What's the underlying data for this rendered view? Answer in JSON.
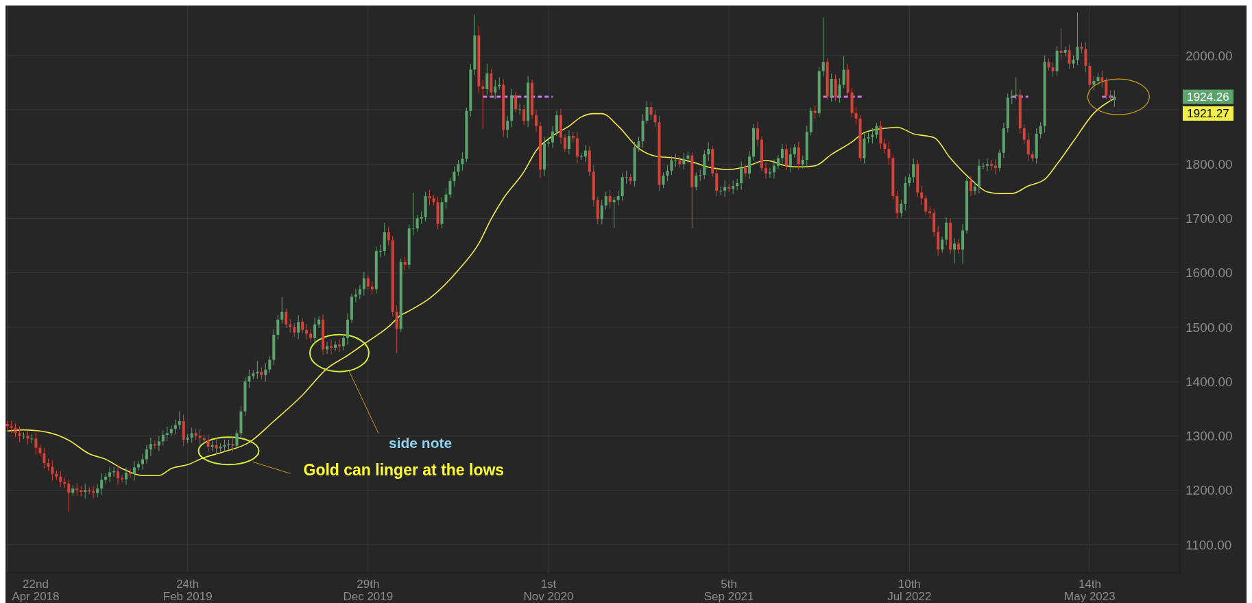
{
  "chart_data": {
    "type": "candlestick",
    "x": [
      "2018-04-22",
      "2018-04-29",
      "2018-05-06",
      "2018-05-13",
      "2018-05-20",
      "2018-05-27",
      "2018-06-03",
      "2018-06-10",
      "2018-06-17",
      "2018-06-24",
      "2018-07-01",
      "2018-07-08",
      "2018-07-15",
      "2018-07-22",
      "2018-07-29",
      "2018-08-05",
      "2018-08-12",
      "2018-08-19",
      "2018-08-26",
      "2018-09-02",
      "2018-09-09",
      "2018-09-16",
      "2018-09-23",
      "2018-09-30",
      "2018-10-07",
      "2018-10-14",
      "2018-10-21",
      "2018-10-28",
      "2018-11-04",
      "2018-11-11",
      "2018-11-18",
      "2018-11-25",
      "2018-12-02",
      "2018-12-09",
      "2018-12-16",
      "2018-12-23",
      "2018-12-30",
      "2019-01-06",
      "2019-01-13",
      "2019-01-20",
      "2019-01-27",
      "2019-02-03",
      "2019-02-10",
      "2019-02-17",
      "2019-02-24",
      "2019-03-03",
      "2019-03-10",
      "2019-03-17",
      "2019-03-24",
      "2019-03-31",
      "2019-04-07",
      "2019-04-14",
      "2019-04-21",
      "2019-04-28",
      "2019-05-05",
      "2019-05-12",
      "2019-05-19",
      "2019-05-26",
      "2019-06-02",
      "2019-06-09",
      "2019-06-16",
      "2019-06-23",
      "2019-06-30",
      "2019-07-07",
      "2019-07-14",
      "2019-07-21",
      "2019-07-28",
      "2019-08-04",
      "2019-08-11",
      "2019-08-18",
      "2019-08-25",
      "2019-09-01",
      "2019-09-08",
      "2019-09-15",
      "2019-09-22",
      "2019-09-29",
      "2019-10-06",
      "2019-10-13",
      "2019-10-20",
      "2019-10-27",
      "2019-11-03",
      "2019-11-10",
      "2019-11-17",
      "2019-11-24",
      "2019-12-01",
      "2019-12-08",
      "2019-12-15",
      "2019-12-22",
      "2019-12-29",
      "2020-01-05",
      "2020-01-12",
      "2020-01-19",
      "2020-01-26",
      "2020-02-02",
      "2020-02-09",
      "2020-02-16",
      "2020-02-23",
      "2020-03-01",
      "2020-03-08",
      "2020-03-15",
      "2020-03-22",
      "2020-03-29",
      "2020-04-05",
      "2020-04-12",
      "2020-04-19",
      "2020-04-26",
      "2020-05-03",
      "2020-05-10",
      "2020-05-17",
      "2020-05-24",
      "2020-05-31",
      "2020-06-07",
      "2020-06-14",
      "2020-06-21",
      "2020-06-28",
      "2020-07-05",
      "2020-07-12",
      "2020-07-19",
      "2020-07-26",
      "2020-08-02",
      "2020-08-09",
      "2020-08-16",
      "2020-08-23",
      "2020-08-30",
      "2020-09-06",
      "2020-09-13",
      "2020-09-20",
      "2020-09-27",
      "2020-10-04",
      "2020-10-11",
      "2020-10-18",
      "2020-10-25",
      "2020-11-01",
      "2020-11-08",
      "2020-11-15",
      "2020-11-22",
      "2020-11-29",
      "2020-12-06",
      "2020-12-13",
      "2020-12-20",
      "2020-12-27",
      "2021-01-03",
      "2021-01-10",
      "2021-01-17",
      "2021-01-24",
      "2021-01-31",
      "2021-02-07",
      "2021-02-14",
      "2021-02-21",
      "2021-02-28",
      "2021-03-07",
      "2021-03-14",
      "2021-03-21",
      "2021-03-28",
      "2021-04-04",
      "2021-04-11",
      "2021-04-18",
      "2021-04-25",
      "2021-05-02",
      "2021-05-09",
      "2021-05-16",
      "2021-05-23",
      "2021-05-30",
      "2021-06-06",
      "2021-06-13",
      "2021-06-20",
      "2021-06-27",
      "2021-07-04",
      "2021-07-11",
      "2021-07-18",
      "2021-07-25",
      "2021-08-01",
      "2021-08-08",
      "2021-08-15",
      "2021-08-22",
      "2021-08-29",
      "2021-09-05",
      "2021-09-12",
      "2021-09-19",
      "2021-09-26",
      "2021-10-03",
      "2021-10-10",
      "2021-10-17",
      "2021-10-24",
      "2021-10-31",
      "2021-11-07",
      "2021-11-14",
      "2021-11-21",
      "2021-11-28",
      "2021-12-05",
      "2021-12-12",
      "2021-12-19",
      "2021-12-26",
      "2022-01-02",
      "2022-01-09",
      "2022-01-16",
      "2022-01-23",
      "2022-01-30",
      "2022-02-06",
      "2022-02-13",
      "2022-02-20",
      "2022-02-27",
      "2022-03-06",
      "2022-03-13",
      "2022-03-20",
      "2022-03-27",
      "2022-04-03",
      "2022-04-10",
      "2022-04-17",
      "2022-04-24",
      "2022-05-01",
      "2022-05-08",
      "2022-05-15",
      "2022-05-22",
      "2022-05-29",
      "2022-06-05",
      "2022-06-12",
      "2022-06-19",
      "2022-06-26",
      "2022-07-03",
      "2022-07-10",
      "2022-07-17",
      "2022-07-24",
      "2022-07-31",
      "2022-08-07",
      "2022-08-14",
      "2022-08-21",
      "2022-08-28",
      "2022-09-04",
      "2022-09-11",
      "2022-09-18",
      "2022-09-25",
      "2022-10-02",
      "2022-10-09",
      "2022-10-16",
      "2022-10-23",
      "2022-10-30",
      "2022-11-06",
      "2022-11-13",
      "2022-11-20",
      "2022-11-27",
      "2022-12-04",
      "2022-12-11",
      "2022-12-18",
      "2022-12-25",
      "2023-01-01",
      "2023-01-08",
      "2023-01-15",
      "2023-01-22",
      "2023-01-29",
      "2023-02-05",
      "2023-02-12",
      "2023-02-19",
      "2023-02-26",
      "2023-03-05",
      "2023-03-12",
      "2023-03-19",
      "2023-03-26",
      "2023-04-02",
      "2023-04-09",
      "2023-04-16",
      "2023-04-23",
      "2023-04-30",
      "2023-05-07",
      "2023-05-14",
      "2023-05-21",
      "2023-05-28",
      "2023-06-04",
      "2023-06-11",
      "2023-06-18",
      "2023-06-25"
    ],
    "ohlc": [
      [
        1322,
        1328,
        1312,
        1318
      ],
      [
        1318,
        1328,
        1305,
        1315
      ],
      [
        1315,
        1323,
        1297,
        1305
      ],
      [
        1305,
        1317,
        1288,
        1300
      ],
      [
        1300,
        1306,
        1294,
        1300
      ],
      [
        1300,
        1310,
        1285,
        1295
      ],
      [
        1295,
        1303,
        1287,
        1295
      ],
      [
        1295,
        1307,
        1266,
        1278
      ],
      [
        1278,
        1284,
        1262,
        1268
      ],
      [
        1268,
        1278,
        1240,
        1250
      ],
      [
        1250,
        1258,
        1235,
        1243
      ],
      [
        1243,
        1255,
        1218,
        1230
      ],
      [
        1230,
        1236,
        1219,
        1225
      ],
      [
        1225,
        1235,
        1205,
        1215
      ],
      [
        1215,
        1223,
        1204,
        1212
      ],
      [
        1212,
        1220,
        1160,
        1195
      ],
      [
        1195,
        1209,
        1189,
        1203
      ],
      [
        1203,
        1213,
        1190,
        1200
      ],
      [
        1200,
        1208,
        1189,
        1197
      ],
      [
        1197,
        1212,
        1185,
        1200
      ],
      [
        1200,
        1206,
        1192,
        1198
      ],
      [
        1198,
        1208,
        1185,
        1195
      ],
      [
        1195,
        1211,
        1187,
        1203
      ],
      [
        1203,
        1231,
        1191,
        1219
      ],
      [
        1219,
        1231,
        1213,
        1225
      ],
      [
        1225,
        1243,
        1215,
        1233
      ],
      [
        1233,
        1243,
        1225,
        1235
      ],
      [
        1235,
        1247,
        1210,
        1222
      ],
      [
        1222,
        1228,
        1214,
        1220
      ],
      [
        1220,
        1242,
        1210,
        1232
      ],
      [
        1232,
        1240,
        1222,
        1230
      ],
      [
        1230,
        1254,
        1218,
        1242
      ],
      [
        1242,
        1254,
        1236,
        1248
      ],
      [
        1248,
        1267,
        1238,
        1257
      ],
      [
        1257,
        1283,
        1249,
        1275
      ],
      [
        1275,
        1297,
        1263,
        1285
      ],
      [
        1285,
        1291,
        1276,
        1282
      ],
      [
        1282,
        1300,
        1272,
        1290
      ],
      [
        1290,
        1310,
        1282,
        1302
      ],
      [
        1302,
        1317,
        1290,
        1305
      ],
      [
        1305,
        1319,
        1299,
        1313
      ],
      [
        1313,
        1330,
        1303,
        1320
      ],
      [
        1320,
        1345,
        1312,
        1327
      ],
      [
        1327,
        1339,
        1281,
        1293
      ],
      [
        1293,
        1303,
        1287,
        1297
      ],
      [
        1297,
        1315,
        1287,
        1305
      ],
      [
        1305,
        1313,
        1292,
        1300
      ],
      [
        1300,
        1312,
        1284,
        1296
      ],
      [
        1296,
        1302,
        1286,
        1292
      ],
      [
        1292,
        1302,
        1270,
        1280
      ],
      [
        1280,
        1291,
        1272,
        1283
      ],
      [
        1283,
        1295,
        1265,
        1277
      ],
      [
        1277,
        1286,
        1271,
        1280
      ],
      [
        1280,
        1293,
        1270,
        1283
      ],
      [
        1283,
        1293,
        1275,
        1285
      ],
      [
        1285,
        1297,
        1270,
        1282
      ],
      [
        1282,
        1311,
        1276,
        1305
      ],
      [
        1305,
        1355,
        1295,
        1345
      ],
      [
        1345,
        1408,
        1337,
        1400
      ],
      [
        1400,
        1422,
        1388,
        1410
      ],
      [
        1410,
        1421,
        1404,
        1415
      ],
      [
        1415,
        1438,
        1405,
        1418
      ],
      [
        1418,
        1426,
        1404,
        1412
      ],
      [
        1412,
        1434,
        1400,
        1422
      ],
      [
        1422,
        1446,
        1416,
        1440
      ],
      [
        1440,
        1496,
        1430,
        1486
      ],
      [
        1486,
        1522,
        1478,
        1514
      ],
      [
        1514,
        1556,
        1506,
        1528
      ],
      [
        1528,
        1534,
        1499,
        1505
      ],
      [
        1505,
        1515,
        1490,
        1500
      ],
      [
        1500,
        1508,
        1482,
        1490
      ],
      [
        1490,
        1522,
        1478,
        1510
      ],
      [
        1510,
        1516,
        1489,
        1495
      ],
      [
        1495,
        1505,
        1478,
        1488
      ],
      [
        1488,
        1496,
        1472,
        1480
      ],
      [
        1480,
        1517,
        1468,
        1505
      ],
      [
        1505,
        1520,
        1499,
        1514
      ],
      [
        1514,
        1524,
        1449,
        1459
      ],
      [
        1459,
        1473,
        1451,
        1465
      ],
      [
        1465,
        1477,
        1450,
        1462
      ],
      [
        1462,
        1474,
        1456,
        1468
      ],
      [
        1468,
        1478,
        1455,
        1465
      ],
      [
        1465,
        1488,
        1457,
        1480
      ],
      [
        1480,
        1526,
        1468,
        1514
      ],
      [
        1514,
        1562,
        1508,
        1556
      ],
      [
        1556,
        1570,
        1546,
        1560
      ],
      [
        1560,
        1578,
        1552,
        1570
      ],
      [
        1570,
        1602,
        1558,
        1590
      ],
      [
        1590,
        1596,
        1569,
        1575
      ],
      [
        1575,
        1585,
        1560,
        1570
      ],
      [
        1570,
        1648,
        1562,
        1640
      ],
      [
        1640,
        1652,
        1628,
        1640
      ],
      [
        1640,
        1692,
        1632,
        1675
      ],
      [
        1675,
        1685,
        1650,
        1660
      ],
      [
        1660,
        1668,
        1520,
        1528
      ],
      [
        1528,
        1540,
        1452,
        1497
      ],
      [
        1497,
        1626,
        1491,
        1620
      ],
      [
        1620,
        1630,
        1605,
        1615
      ],
      [
        1615,
        1690,
        1607,
        1682
      ],
      [
        1682,
        1748,
        1670,
        1682
      ],
      [
        1682,
        1706,
        1676,
        1700
      ],
      [
        1700,
        1713,
        1690,
        1703
      ],
      [
        1703,
        1749,
        1695,
        1741
      ],
      [
        1741,
        1753,
        1725,
        1737
      ],
      [
        1737,
        1743,
        1724,
        1730
      ],
      [
        1730,
        1740,
        1680,
        1690
      ],
      [
        1690,
        1738,
        1682,
        1730
      ],
      [
        1730,
        1756,
        1718,
        1744
      ],
      [
        1744,
        1775,
        1738,
        1769
      ],
      [
        1769,
        1796,
        1759,
        1786
      ],
      [
        1786,
        1808,
        1778,
        1800
      ],
      [
        1800,
        1822,
        1788,
        1810
      ],
      [
        1810,
        1904,
        1804,
        1898
      ],
      [
        1898,
        1984,
        1888,
        1974
      ],
      [
        1974,
        2075,
        1964,
        2037
      ],
      [
        2037,
        2055,
        1930,
        1943
      ],
      [
        1943,
        1955,
        1865,
        1938
      ],
      [
        1938,
        1985,
        1928,
        1967
      ],
      [
        1967,
        1975,
        1924,
        1932
      ],
      [
        1932,
        1955,
        1920,
        1943
      ],
      [
        1943,
        1960,
        1937,
        1946
      ],
      [
        1946,
        1956,
        1850,
        1863
      ],
      [
        1863,
        1888,
        1848,
        1880
      ],
      [
        1880,
        1939,
        1868,
        1927
      ],
      [
        1927,
        1933,
        1895,
        1901
      ],
      [
        1901,
        1911,
        1891,
        1901
      ],
      [
        1901,
        1909,
        1872,
        1880
      ],
      [
        1880,
        1962,
        1868,
        1950
      ],
      [
        1950,
        1956,
        1884,
        1890
      ],
      [
        1890,
        1900,
        1860,
        1870
      ],
      [
        1870,
        1878,
        1775,
        1790
      ],
      [
        1790,
        1850,
        1778,
        1838
      ],
      [
        1838,
        1846,
        1832,
        1840
      ],
      [
        1840,
        1870,
        1830,
        1860
      ],
      [
        1860,
        1898,
        1852,
        1890
      ],
      [
        1890,
        1902,
        1837,
        1849
      ],
      [
        1849,
        1855,
        1822,
        1828
      ],
      [
        1828,
        1862,
        1818,
        1852
      ],
      [
        1852,
        1860,
        1840,
        1848
      ],
      [
        1848,
        1860,
        1802,
        1814
      ],
      [
        1814,
        1820,
        1808,
        1814
      ],
      [
        1814,
        1835,
        1804,
        1825
      ],
      [
        1825,
        1833,
        1778,
        1786
      ],
      [
        1786,
        1798,
        1722,
        1734
      ],
      [
        1734,
        1740,
        1689,
        1699
      ],
      [
        1699,
        1734,
        1689,
        1724
      ],
      [
        1724,
        1749,
        1716,
        1741
      ],
      [
        1741,
        1753,
        1718,
        1730
      ],
      [
        1730,
        1740,
        1682,
        1734
      ],
      [
        1734,
        1751,
        1724,
        1741
      ],
      [
        1741,
        1784,
        1733,
        1776
      ],
      [
        1776,
        1788,
        1764,
        1776
      ],
      [
        1776,
        1782,
        1763,
        1769
      ],
      [
        1769,
        1841,
        1759,
        1831
      ],
      [
        1831,
        1850,
        1823,
        1842
      ],
      [
        1842,
        1892,
        1830,
        1880
      ],
      [
        1880,
        1916,
        1874,
        1905
      ],
      [
        1905,
        1915,
        1881,
        1891
      ],
      [
        1891,
        1899,
        1869,
        1877
      ],
      [
        1877,
        1889,
        1750,
        1762
      ],
      [
        1762,
        1785,
        1756,
        1779
      ],
      [
        1779,
        1798,
        1769,
        1788
      ],
      [
        1788,
        1815,
        1780,
        1807
      ],
      [
        1807,
        1819,
        1795,
        1807
      ],
      [
        1807,
        1813,
        1794,
        1800
      ],
      [
        1800,
        1820,
        1790,
        1810
      ],
      [
        1810,
        1824,
        1802,
        1816
      ],
      [
        1816,
        1822,
        1682,
        1758
      ],
      [
        1758,
        1785,
        1752,
        1779
      ],
      [
        1779,
        1790,
        1769,
        1780
      ],
      [
        1780,
        1826,
        1772,
        1818
      ],
      [
        1818,
        1840,
        1806,
        1828
      ],
      [
        1828,
        1834,
        1777,
        1783
      ],
      [
        1783,
        1793,
        1741,
        1751
      ],
      [
        1751,
        1759,
        1743,
        1751
      ],
      [
        1751,
        1770,
        1739,
        1758
      ],
      [
        1758,
        1764,
        1749,
        1755
      ],
      [
        1755,
        1770,
        1745,
        1760
      ],
      [
        1760,
        1773,
        1752,
        1765
      ],
      [
        1765,
        1805,
        1753,
        1793
      ],
      [
        1793,
        1799,
        1777,
        1783
      ],
      [
        1783,
        1824,
        1773,
        1814
      ],
      [
        1814,
        1874,
        1806,
        1866
      ],
      [
        1866,
        1878,
        1833,
        1845
      ],
      [
        1845,
        1851,
        1787,
        1793
      ],
      [
        1793,
        1803,
        1773,
        1783
      ],
      [
        1783,
        1793,
        1775,
        1785
      ],
      [
        1785,
        1809,
        1773,
        1797
      ],
      [
        1797,
        1817,
        1791,
        1811
      ],
      [
        1811,
        1838,
        1801,
        1828
      ],
      [
        1828,
        1836,
        1789,
        1797
      ],
      [
        1797,
        1830,
        1785,
        1818
      ],
      [
        1818,
        1837,
        1812,
        1831
      ],
      [
        1831,
        1841,
        1790,
        1800
      ],
      [
        1800,
        1816,
        1792,
        1808
      ],
      [
        1808,
        1871,
        1796,
        1859
      ],
      [
        1859,
        1904,
        1853,
        1898
      ],
      [
        1898,
        1908,
        1884,
        1894
      ],
      [
        1894,
        1979,
        1886,
        1971
      ],
      [
        1971,
        2070,
        1961,
        1988
      ],
      [
        1988,
        1994,
        1919,
        1925
      ],
      [
        1925,
        1967,
        1915,
        1957
      ],
      [
        1957,
        1965,
        1917,
        1925
      ],
      [
        1925,
        1958,
        1913,
        1946
      ],
      [
        1946,
        1999,
        1940,
        1974
      ],
      [
        1974,
        1984,
        1922,
        1932
      ],
      [
        1932,
        1940,
        1886,
        1894
      ],
      [
        1894,
        1906,
        1872,
        1884
      ],
      [
        1884,
        1890,
        1805,
        1811
      ],
      [
        1811,
        1857,
        1801,
        1847
      ],
      [
        1847,
        1858,
        1839,
        1850
      ],
      [
        1850,
        1866,
        1838,
        1854
      ],
      [
        1854,
        1876,
        1848,
        1870
      ],
      [
        1870,
        1880,
        1828,
        1838
      ],
      [
        1838,
        1846,
        1820,
        1828
      ],
      [
        1828,
        1840,
        1799,
        1811
      ],
      [
        1811,
        1817,
        1735,
        1741
      ],
      [
        1741,
        1751,
        1700,
        1710
      ],
      [
        1710,
        1735,
        1702,
        1727
      ],
      [
        1727,
        1777,
        1715,
        1765
      ],
      [
        1765,
        1782,
        1759,
        1776
      ],
      [
        1776,
        1810,
        1766,
        1800
      ],
      [
        1800,
        1808,
        1740,
        1748
      ],
      [
        1748,
        1760,
        1725,
        1737
      ],
      [
        1737,
        1743,
        1707,
        1713
      ],
      [
        1713,
        1723,
        1700,
        1710
      ],
      [
        1710,
        1718,
        1667,
        1675
      ],
      [
        1675,
        1687,
        1631,
        1643
      ],
      [
        1643,
        1667,
        1637,
        1661
      ],
      [
        1661,
        1702,
        1651,
        1692
      ],
      [
        1692,
        1700,
        1635,
        1643
      ],
      [
        1643,
        1664,
        1617,
        1654
      ],
      [
        1654,
        1662,
        1635,
        1643
      ],
      [
        1643,
        1690,
        1617,
        1678
      ],
      [
        1678,
        1775,
        1672,
        1769
      ],
      [
        1769,
        1779,
        1741,
        1751
      ],
      [
        1751,
        1766,
        1743,
        1758
      ],
      [
        1758,
        1809,
        1746,
        1797
      ],
      [
        1797,
        1803,
        1791,
        1797
      ],
      [
        1797,
        1810,
        1787,
        1800
      ],
      [
        1800,
        1808,
        1789,
        1797
      ],
      [
        1797,
        1809,
        1781,
        1793
      ],
      [
        1793,
        1827,
        1787,
        1821
      ],
      [
        1821,
        1876,
        1811,
        1866
      ],
      [
        1866,
        1930,
        1858,
        1922
      ],
      [
        1922,
        1937,
        1910,
        1925
      ],
      [
        1925,
        1960,
        1919,
        1928
      ],
      [
        1928,
        1938,
        1856,
        1866
      ],
      [
        1866,
        1874,
        1837,
        1845
      ],
      [
        1845,
        1857,
        1806,
        1818
      ],
      [
        1818,
        1824,
        1805,
        1811
      ],
      [
        1811,
        1866,
        1801,
        1856
      ],
      [
        1856,
        1878,
        1848,
        1870
      ],
      [
        1870,
        2000,
        1858,
        1988
      ],
      [
        1988,
        1994,
        1972,
        1978
      ],
      [
        1978,
        1988,
        1961,
        1971
      ],
      [
        1971,
        2017,
        1963,
        2009
      ],
      [
        2009,
        2051,
        1993,
        2005
      ],
      [
        2005,
        2016,
        1999,
        2010
      ],
      [
        2010,
        2020,
        1975,
        1985
      ],
      [
        1985,
        2000,
        1977,
        1992
      ],
      [
        1992,
        2079,
        1982,
        2016
      ],
      [
        2016,
        2024,
        2004,
        2012
      ],
      [
        2012,
        2024,
        1969,
        1981
      ],
      [
        1981,
        1987,
        1940,
        1946
      ],
      [
        1946,
        1963,
        1936,
        1953
      ],
      [
        1953,
        1968,
        1945,
        1960
      ],
      [
        1960,
        1972,
        1941,
        1953
      ],
      [
        1953,
        1959,
        1920,
        1926
      ],
      [
        1926,
        1936,
        1915,
        1925
      ],
      [
        1918,
        1936,
        1905,
        1924
      ]
    ],
    "series": [
      {
        "type": "line",
        "color": "#f2ee4a",
        "x": [
          "2018-04-22",
          "2018-05-20",
          "2018-06-17",
          "2018-07-15",
          "2018-08-05",
          "2018-09-09",
          "2018-10-07",
          "2018-11-04",
          "2018-12-09",
          "2019-01-06",
          "2019-01-27",
          "2019-02-24",
          "2019-03-24",
          "2019-04-28",
          "2019-06-09",
          "2019-07-21",
          "2019-09-08",
          "2019-10-20",
          "2019-11-24",
          "2019-12-22",
          "2020-02-02",
          "2020-02-23",
          "2020-03-08",
          "2020-04-12",
          "2020-05-31",
          "2020-07-05",
          "2020-07-26",
          "2020-08-16",
          "2020-09-20",
          "2020-10-11",
          "2020-11-08",
          "2020-12-06",
          "2020-12-27",
          "2021-01-17",
          "2021-01-31",
          "2021-02-28",
          "2021-04-04",
          "2021-05-02",
          "2021-06-06",
          "2021-07-04",
          "2021-08-08",
          "2021-09-05",
          "2021-10-03",
          "2021-11-07",
          "2021-12-12",
          "2022-01-02",
          "2022-01-30",
          "2022-02-27",
          "2022-04-03",
          "2022-04-24",
          "2022-05-29",
          "2022-06-19",
          "2022-07-17",
          "2022-08-21",
          "2022-09-18",
          "2022-10-23",
          "2022-11-20",
          "2022-12-11",
          "2023-01-01",
          "2023-01-29",
          "2023-02-26",
          "2023-03-19",
          "2023-04-16",
          "2023-05-21",
          "2023-06-25"
        ],
        "values": [
          1309,
          1311,
          1309,
          1302,
          1292,
          1267,
          1257,
          1240,
          1227,
          1227,
          1240,
          1247,
          1260,
          1271,
          1288,
          1327,
          1375,
          1424,
          1448,
          1469,
          1501,
          1522,
          1530,
          1553,
          1605,
          1654,
          1699,
          1737,
          1786,
          1825,
          1852,
          1870,
          1887,
          1893,
          1893,
          1870,
          1829,
          1815,
          1811,
          1804,
          1793,
          1790,
          1795,
          1807,
          1797,
          1795,
          1797,
          1818,
          1841,
          1858,
          1866,
          1868,
          1856,
          1849,
          1811,
          1772,
          1749,
          1746,
          1746,
          1760,
          1772,
          1800,
          1842,
          1894,
          1921
        ]
      },
      {
        "type": "line",
        "color": "#cc77ee",
        "line_style": "dashed",
        "x": [
          "2020-07-12",
          "2020-11-08",
          "2020-11-15",
          "2022-02-13",
          "2022-04-24",
          "2022-05-01",
          "2023-01-01",
          "2023-01-29",
          "2023-02-05",
          "2023-06-04",
          "2023-06-25"
        ],
        "values": [
          1924,
          1924,
          null,
          1924,
          1924,
          null,
          1924,
          1924,
          null,
          1924,
          1924
        ]
      }
    ],
    "xlim": [
      "2018-04-19",
      "2023-10-15"
    ],
    "xticks": [
      {
        "value": "2018-04-22",
        "label": "22nd Apr 2018"
      },
      {
        "value": "2019-02-24",
        "label": "24th Feb 2019"
      },
      {
        "value": "2019-12-29",
        "label": "29th Dec 2019"
      },
      {
        "value": "2020-11-01",
        "label": "1st Nov 2020"
      },
      {
        "value": "2021-09-05",
        "label": "5th Sep 2021"
      },
      {
        "value": "2022-07-10",
        "label": "10th Jul 2022"
      },
      {
        "value": "2023-05-14",
        "label": "14th May 2023"
      }
    ],
    "ylim": [
      1048,
      2092
    ],
    "yticks": [
      {
        "value": 1100,
        "label": "1100.00"
      },
      {
        "value": 1200,
        "label": "1200.00"
      },
      {
        "value": 1300,
        "label": "1300.00"
      },
      {
        "value": 1400,
        "label": "1400.00"
      },
      {
        "value": 1500,
        "label": "1500.00"
      },
      {
        "value": 1600,
        "label": "1600.00"
      },
      {
        "value": 1700,
        "label": "1700.00"
      },
      {
        "value": 1800,
        "label": "1800.00"
      },
      {
        "value": 1900,
        "label": null
      },
      {
        "value": 2000,
        "label": "2000.00"
      }
    ],
    "grid": true,
    "annotations": [
      "Gold can linger at the lows",
      "side note",
      "1924.26",
      "1921.27"
    ]
  }
}
